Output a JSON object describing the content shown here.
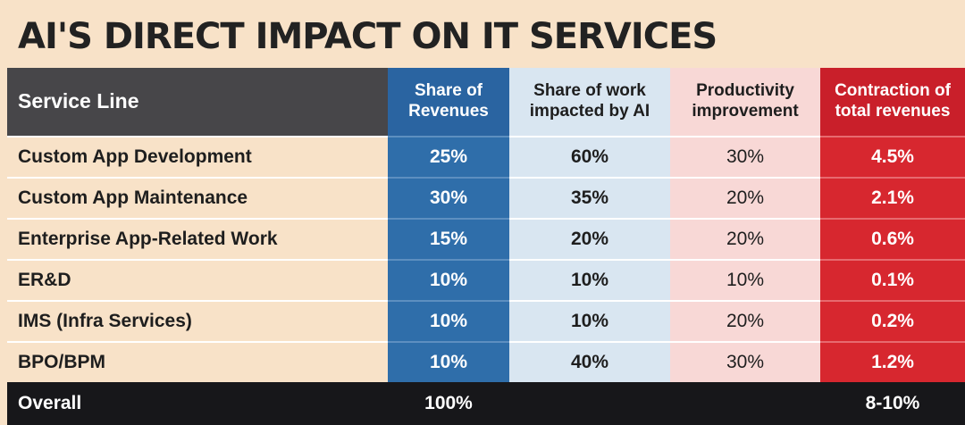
{
  "chart_data": {
    "type": "table",
    "title": "AI'S DIRECT IMPACT ON IT SERVICES",
    "columns": [
      "Service Line",
      "Share of Revenues",
      "Share of work impacted by AI",
      "Productivity improvement",
      "Contraction of total revenues"
    ],
    "header_lines": [
      [
        "Service Line"
      ],
      [
        "Share of",
        "Revenues"
      ],
      [
        "Share of work",
        "impacted by AI"
      ],
      [
        "Productivity",
        "improvement"
      ],
      [
        "Contraction of",
        "total revenues"
      ]
    ],
    "rows": [
      [
        "Custom App Development",
        "25%",
        "60%",
        "30%",
        "4.5%"
      ],
      [
        "Custom App Maintenance",
        "30%",
        "35%",
        "20%",
        "2.1%"
      ],
      [
        "Enterprise App-Related Work",
        "15%",
        "20%",
        "20%",
        "0.6%"
      ],
      [
        "ER&D",
        "10%",
        "10%",
        "10%",
        "0.1%"
      ],
      [
        "IMS (Infra Services)",
        "10%",
        "10%",
        "20%",
        "0.2%"
      ],
      [
        "BPO/BPM",
        "10%",
        "40%",
        "30%",
        "1.2%"
      ]
    ],
    "overall": {
      "label": "Overall",
      "share_of_revenues": "100%",
      "contraction": "8-10%"
    }
  },
  "colors": {
    "background": "#f8e2c8",
    "header_dark": "#474649",
    "revenue_blue": "#2f6eaa",
    "work_light_blue": "#d9e6f1",
    "productivity_pink": "#f8d8d6",
    "contraction_red": "#d7272f",
    "overall_black": "#17171a"
  }
}
